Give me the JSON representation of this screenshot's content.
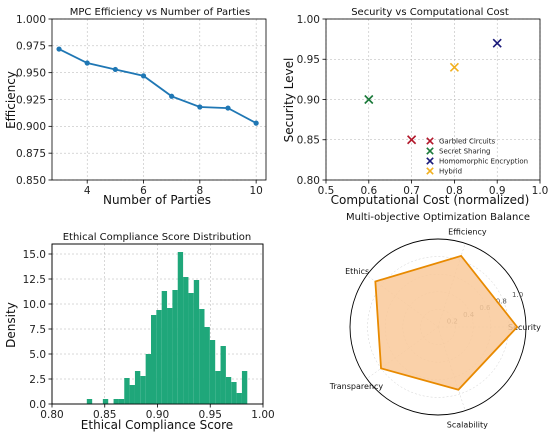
{
  "chart_data": [
    {
      "type": "line",
      "title": "MPC Efficiency vs Number of Parties",
      "xlabel": "Number of Parties",
      "ylabel": "Efficiency",
      "x": [
        3,
        4,
        5,
        6,
        7,
        8,
        9,
        10
      ],
      "y": [
        0.972,
        0.959,
        0.953,
        0.947,
        0.928,
        0.918,
        0.917,
        0.903
      ],
      "xlim": [
        2.75,
        10.35
      ],
      "ylim": [
        0.85,
        1.0
      ],
      "xticks": [
        4,
        6,
        8,
        10
      ],
      "yticks": [
        0.85,
        0.875,
        0.9,
        0.925,
        0.95,
        0.975,
        1.0
      ],
      "ytick_labels": [
        "0.850",
        "0.875",
        "0.900",
        "0.925",
        "0.950",
        "0.975",
        "1.000"
      ],
      "color": "#1f77b4",
      "grid": true
    },
    {
      "type": "scatter",
      "title": "Security vs Computational Cost",
      "xlabel": "Computational Cost (normalized)",
      "ylabel": "Security Level",
      "xlim": [
        0.5,
        1.0
      ],
      "ylim": [
        0.8,
        1.0
      ],
      "xticks": [
        0.5,
        0.6,
        0.7,
        0.8,
        0.9,
        1.0
      ],
      "xtick_labels": [
        "0.5",
        "0.6",
        "0.7",
        "0.8",
        "0.9",
        "1.0"
      ],
      "yticks": [
        0.8,
        0.85,
        0.9,
        0.95,
        1.0
      ],
      "ytick_labels": [
        "0.80",
        "0.85",
        "0.90",
        "0.95",
        "1.00"
      ],
      "series": [
        {
          "name": "Garbled Circuits",
          "x": 0.7,
          "y": 0.85,
          "color": "#b2182b"
        },
        {
          "name": "Secret Sharing",
          "x": 0.6,
          "y": 0.9,
          "color": "#1b7a3a"
        },
        {
          "name": "Homomorphic Encryption",
          "x": 0.9,
          "y": 0.97,
          "color": "#1a1a7a"
        },
        {
          "name": "Hybrid",
          "x": 0.8,
          "y": 0.94,
          "color": "#f2b01e"
        }
      ],
      "legend": "bottom-right",
      "grid": true
    },
    {
      "type": "bar",
      "title": "Ethical Compliance Score Distribution",
      "xlabel": "Ethical Compliance Score",
      "ylabel": "Density",
      "xlim": [
        0.8,
        1.0
      ],
      "ylim": [
        0,
        16
      ],
      "xticks": [
        0.8,
        0.85,
        0.9,
        0.95,
        1.0
      ],
      "xtick_labels": [
        "0.80",
        "0.85",
        "0.90",
        "0.95",
        "1.00"
      ],
      "yticks": [
        0,
        2.5,
        5,
        7.5,
        10,
        12.5,
        15
      ],
      "ytick_labels": [
        "0.0",
        "2.5",
        "5.0",
        "7.5",
        "10.0",
        "12.5",
        "15.0"
      ],
      "bin_start": 0.833,
      "bin_width": 0.00507,
      "values": [
        0.5,
        0,
        0,
        0.5,
        0,
        0.5,
        0.5,
        2.6,
        1.9,
        3.3,
        2.8,
        5.0,
        8.9,
        9.4,
        11.3,
        9.6,
        11.4,
        15.2,
        12.7,
        11.1,
        12.4,
        9.5,
        7.7,
        6.4,
        3.3,
        5.8,
        2.7,
        2.2,
        1.1,
        3.3
      ],
      "color": "#1fa77a",
      "grid": true
    },
    {
      "type": "radar",
      "title": "Multi-objective Optimization Balance",
      "axes": [
        "Security",
        "Efficiency",
        "Ethics",
        "Transparency",
        "Scalability"
      ],
      "values": [
        0.9,
        0.85,
        0.88,
        0.8,
        0.75
      ],
      "rmax": 1.0,
      "rticks": [
        "0.2",
        "0.4",
        "0.6",
        "0.8",
        "1.0"
      ],
      "color": "#e88a00",
      "fill": "#f9c99a"
    }
  ]
}
